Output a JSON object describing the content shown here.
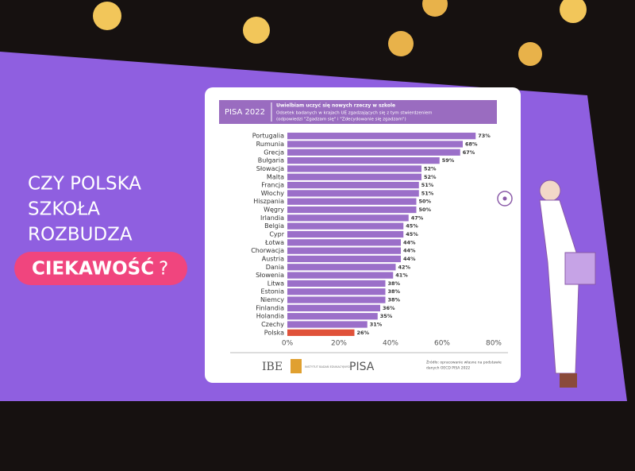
{
  "slide": {
    "heading": [
      "CZY POLSKA",
      "SZKOŁA",
      "ROZBUDZA"
    ],
    "highlight": "CIEKAWOŚĆ",
    "question_mark": "?"
  },
  "footer": {
    "logo": "IBE",
    "institute": "INSTYTUT BADAŃ EDUKACYJNYCH",
    "pisa": "PISA",
    "source": [
      "Źródło: opracowanie własne na podstawie",
      "danych OECD PISA 2022"
    ]
  },
  "chart_data": {
    "type": "bar",
    "orientation": "horizontal",
    "header": "PISA 2022",
    "title": "Uwielbiam uczyć się nowych rzeczy w szkole",
    "subtitle": [
      "Odsetek badanych w krajach UE zgadzających się z tym stwierdzeniem",
      "(odpowiedzi \"Zgadzam się\" i \"Zdecydowanie się zgadzam\")"
    ],
    "categories": [
      "Portugalia",
      "Rumunia",
      "Grecja",
      "Bułgaria",
      "Słowacja",
      "Malta",
      "Francja",
      "Włochy",
      "Hiszpania",
      "Węgry",
      "Irlandia",
      "Belgia",
      "Cypr",
      "Łotwa",
      "Chorwacja",
      "Austria",
      "Dania",
      "Słowenia",
      "Litwa",
      "Estonia",
      "Niemcy",
      "Finlandia",
      "Holandia",
      "Czechy",
      "Polska"
    ],
    "values": [
      73,
      68,
      67,
      59,
      52,
      52,
      51,
      51,
      50,
      50,
      47,
      45,
      45,
      44,
      44,
      44,
      42,
      41,
      38,
      38,
      38,
      36,
      35,
      31,
      26
    ],
    "value_labels": [
      "73%",
      "68%",
      "67%",
      "59%",
      "52%",
      "52%",
      "51%",
      "51%",
      "50%",
      "50%",
      "47%",
      "45%",
      "45%",
      "44%",
      "44%",
      "44%",
      "42%",
      "41%",
      "38%",
      "38%",
      "38%",
      "36%",
      "35%",
      "31%",
      "26%"
    ],
    "colors": [
      "#9b6fc9",
      "#9b6fc9",
      "#9b6fc9",
      "#9b6fc9",
      "#9b6fc9",
      "#9b6fc9",
      "#9b6fc9",
      "#9b6fc9",
      "#9b6fc9",
      "#9b6fc9",
      "#9b6fc9",
      "#9b6fc9",
      "#9b6fc9",
      "#9b6fc9",
      "#9b6fc9",
      "#9b6fc9",
      "#9b6fc9",
      "#9b6fc9",
      "#9b6fc9",
      "#9b6fc9",
      "#9b6fc9",
      "#9b6fc9",
      "#9b6fc9",
      "#9b6fc9",
      "#e0523a"
    ],
    "xlim": [
      0,
      80
    ],
    "xticks": [
      {
        "value": 0,
        "label": "0%"
      },
      {
        "value": 20,
        "label": "20%"
      },
      {
        "value": 40,
        "label": "40%"
      },
      {
        "value": 60,
        "label": "60%"
      },
      {
        "value": 80,
        "label": "80%"
      }
    ],
    "grid": false
  }
}
